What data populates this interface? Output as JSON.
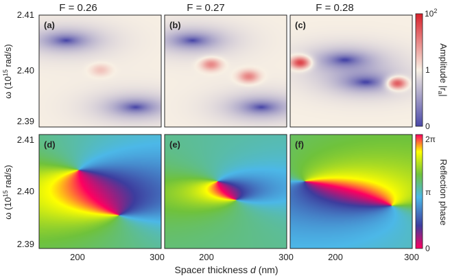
{
  "colors": {
    "amplitude_low": "#4a48a8",
    "amplitude_mid": "#f8f0e4",
    "amplitude_high": "#d8202a",
    "phase_stops": [
      "#ff0060",
      "#3d3d9e",
      "#4cb8e8",
      "#6fc23c",
      "#ffff00",
      "#ff0060"
    ]
  },
  "chart_data": [
    {
      "type": "heatmap",
      "panel": "(a)",
      "title": "F = 0.26",
      "quantity": "amplitude",
      "x_range": [
        155,
        300
      ],
      "y_range": [
        2.39,
        2.41
      ],
      "dips": [
        {
          "x": 187,
          "y": 2.4055
        },
        {
          "x": 270,
          "y": 2.3935
        }
      ],
      "peaks": [
        {
          "x": 228,
          "y": 2.4002,
          "level": 0.22
        }
      ]
    },
    {
      "type": "heatmap",
      "panel": "(b)",
      "title": "F = 0.27",
      "quantity": "amplitude",
      "x_range": [
        155,
        300
      ],
      "y_range": [
        2.39,
        2.41
      ],
      "dips": [
        {
          "x": 188,
          "y": 2.4055
        },
        {
          "x": 270,
          "y": 2.3935
        }
      ],
      "peaks": [
        {
          "x": 210,
          "y": 2.4012,
          "level": 0.5
        },
        {
          "x": 255,
          "y": 2.399,
          "level": 0.5
        }
      ]
    },
    {
      "type": "heatmap",
      "panel": "(c)",
      "title": "F = 0.28",
      "quantity": "amplitude",
      "x_range": [
        155,
        300
      ],
      "y_range": [
        2.39,
        2.41
      ],
      "dips": [
        {
          "x": 220,
          "y": 2.402
        },
        {
          "x": 245,
          "y": 2.398
        }
      ],
      "peaks": [
        {
          "x": 167,
          "y": 2.4015,
          "level": 0.9
        },
        {
          "x": 282,
          "y": 2.3978,
          "level": 0.9
        }
      ]
    },
    {
      "type": "heatmap",
      "panel": "(d)",
      "quantity": "phase",
      "x_range": [
        155,
        300
      ],
      "y_range": [
        2.39,
        2.41
      ],
      "singularities": [
        {
          "x": 202,
          "y": 2.4038,
          "charge": 1
        },
        {
          "x": 250,
          "y": 2.3958,
          "charge": -1
        }
      ]
    },
    {
      "type": "heatmap",
      "panel": "(e)",
      "quantity": "phase",
      "x_range": [
        155,
        300
      ],
      "y_range": [
        2.39,
        2.41
      ],
      "singularities": [
        {
          "x": 218,
          "y": 2.4018,
          "charge": 1
        },
        {
          "x": 240,
          "y": 2.3985,
          "charge": -1
        }
      ]
    },
    {
      "type": "heatmap",
      "panel": "(f)",
      "quantity": "phase",
      "x_range": [
        155,
        300
      ],
      "y_range": [
        2.39,
        2.41
      ],
      "singularities": [
        {
          "x": 172,
          "y": 2.4018,
          "charge": -1
        },
        {
          "x": 276,
          "y": 2.3975,
          "charge": 1
        }
      ]
    }
  ],
  "axes": {
    "xlabel_prefix": "Spacer thickness ",
    "xlabel_var": "d",
    "xlabel_suffix": " (nm)",
    "ylabel_main": "ω (10",
    "ylabel_sup": "15",
    "ylabel_tail": " rad/s)",
    "xticks": [
      {
        "value": 200,
        "label": "200"
      },
      {
        "value": 300,
        "label": "300"
      }
    ],
    "yticks": [
      {
        "value": 2.41,
        "label": "2.41"
      },
      {
        "value": 2.4,
        "label": "2.40"
      },
      {
        "value": 2.39,
        "label": "2.39"
      }
    ]
  },
  "colorbars": {
    "amplitude": {
      "label_main": "Amplitude |r",
      "label_sub": "a",
      "label_end": "|",
      "ticks": [
        {
          "pos": 1,
          "label": "10",
          "sup": "2"
        },
        {
          "pos": 0.5,
          "label": "1",
          "sup": ""
        },
        {
          "pos": 0,
          "label": "0",
          "sup": ""
        }
      ]
    },
    "phase": {
      "label": "Reflection phase",
      "ticks": [
        {
          "pos": 1,
          "label": "2π"
        },
        {
          "pos": 0.5,
          "label": "π"
        },
        {
          "pos": 0,
          "label": "0"
        }
      ]
    }
  }
}
